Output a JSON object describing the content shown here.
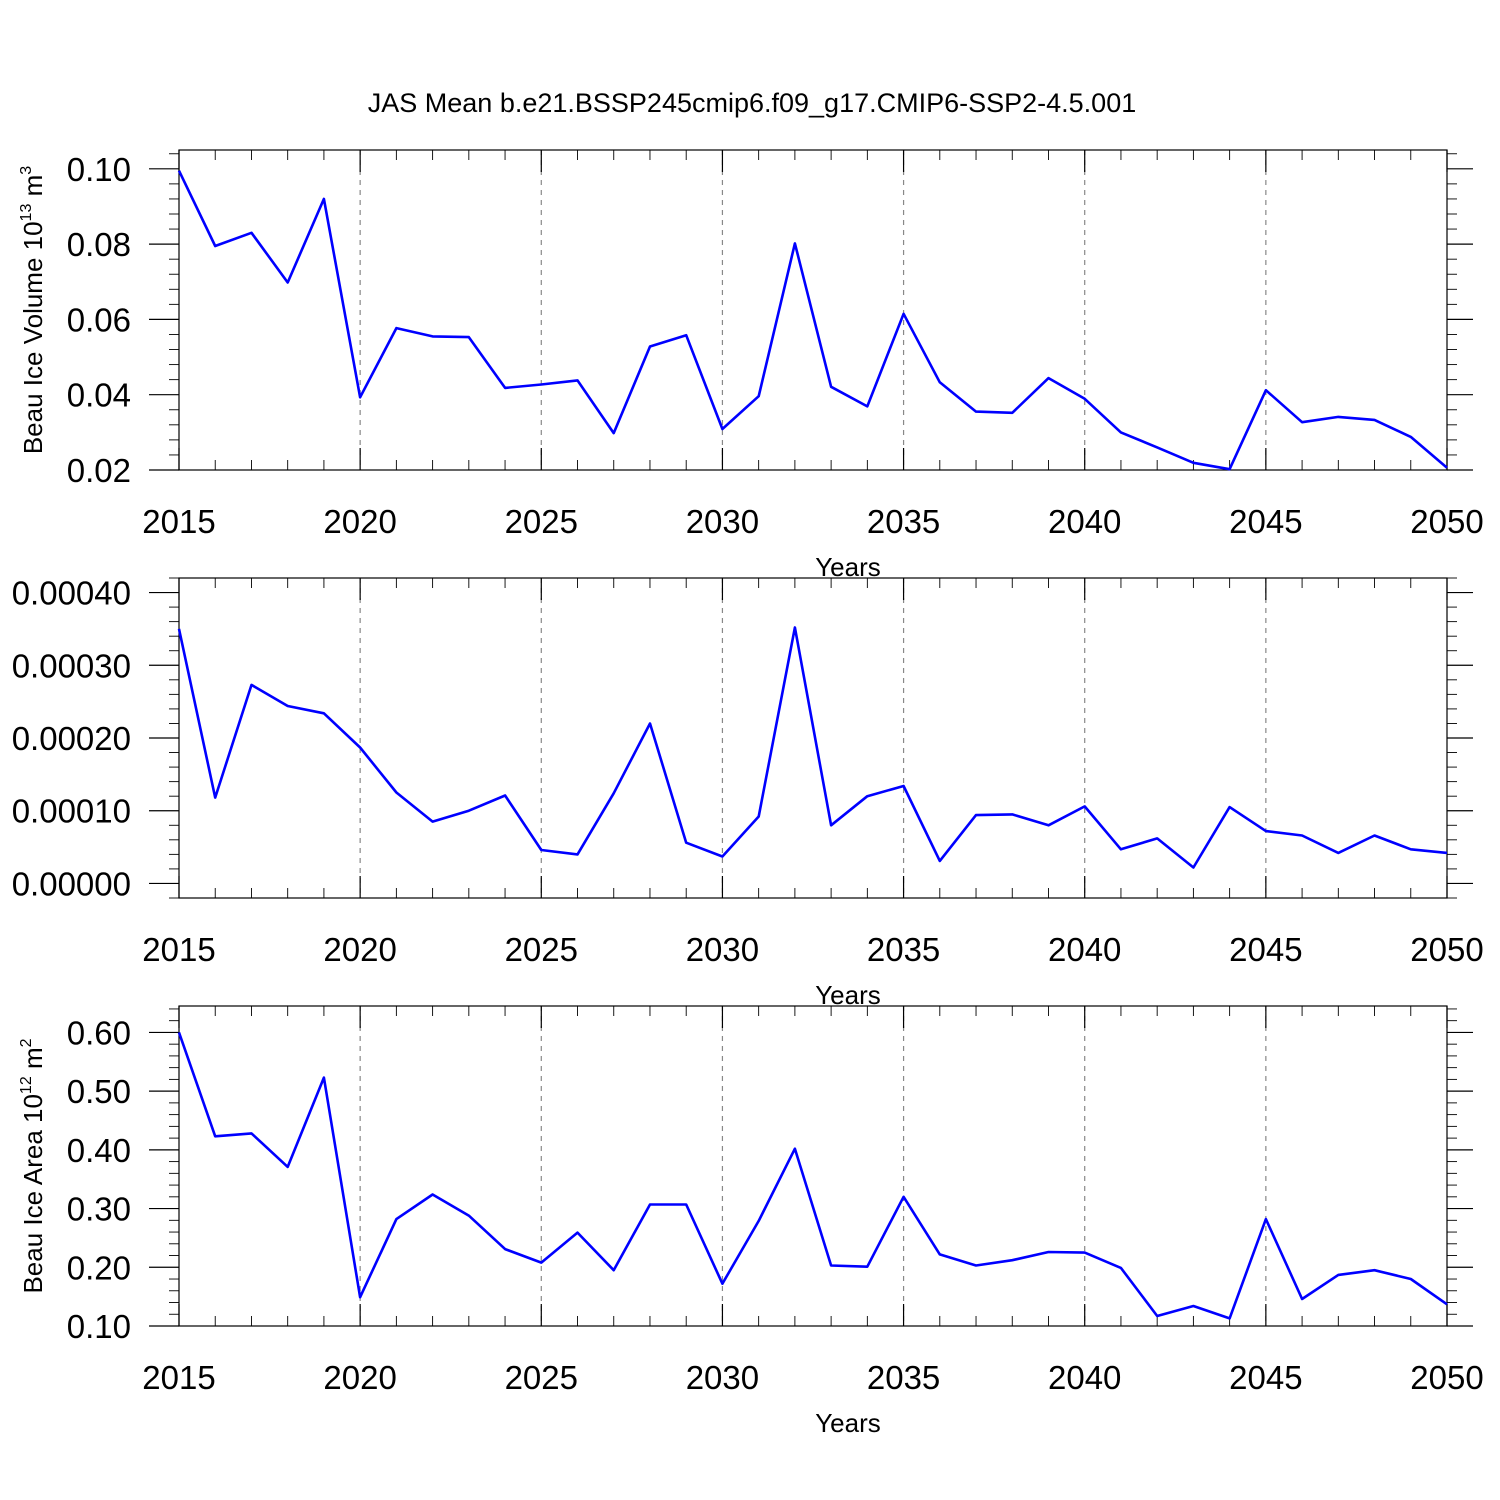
{
  "title": "JAS Mean b.e21.BSSP245cmip6.f09_g17.CMIP6-SSP2-4.5.001",
  "chart_data": [
    {
      "type": "line",
      "xlabel": "Years",
      "ylabel": "Beau Ice Volume 10",
      "ylabel_exp": "13",
      "ylabel_unit": " m",
      "ylabel_unit_exp": "3",
      "xlim": [
        2015,
        2050
      ],
      "ylim": [
        0.02,
        0.105
      ],
      "xticks": [
        2015,
        2020,
        2025,
        2030,
        2035,
        2040,
        2045,
        2050
      ],
      "xtick_labels": [
        "2015",
        "2020",
        "2025",
        "2030",
        "2035",
        "2040",
        "2045",
        "2050"
      ],
      "yticks": [
        0.02,
        0.04,
        0.06,
        0.08,
        0.1
      ],
      "ytick_labels": [
        "0.02",
        "0.04",
        "0.06",
        "0.08",
        "0.10"
      ],
      "grid": "vertical-dashed",
      "series_color": "#0000ff",
      "x": [
        2015,
        2016,
        2017,
        2018,
        2019,
        2020,
        2021,
        2022,
        2023,
        2024,
        2025,
        2026,
        2027,
        2028,
        2029,
        2030,
        2031,
        2032,
        2033,
        2034,
        2035,
        2036,
        2037,
        2038,
        2039,
        2040,
        2041,
        2042,
        2043,
        2044,
        2045,
        2046,
        2047,
        2048,
        2049,
        2050
      ],
      "y": [
        0.0995,
        0.0795,
        0.083,
        0.0698,
        0.092,
        0.0393,
        0.0577,
        0.0555,
        0.0553,
        0.0418,
        0.0427,
        0.0438,
        0.0298,
        0.0528,
        0.0558,
        0.0309,
        0.0396,
        0.0802,
        0.0421,
        0.0369,
        0.0615,
        0.0433,
        0.0355,
        0.0352,
        0.0444,
        0.0389,
        0.03,
        0.026,
        0.0219,
        0.0202,
        0.0412,
        0.0327,
        0.0341,
        0.0333,
        0.0288,
        0.0206
      ]
    },
    {
      "type": "line",
      "xlabel": "Years",
      "ylabel": "",
      "xlim": [
        2015,
        2050
      ],
      "ylim": [
        -2e-05,
        0.00042
      ],
      "xticks": [
        2015,
        2020,
        2025,
        2030,
        2035,
        2040,
        2045,
        2050
      ],
      "xtick_labels": [
        "2015",
        "2020",
        "2025",
        "2030",
        "2035",
        "2040",
        "2045",
        "2050"
      ],
      "yticks": [
        0.0,
        0.0001,
        0.0002,
        0.0003,
        0.0004
      ],
      "ytick_labels": [
        "0.00000",
        "0.00010",
        "0.00020",
        "0.00030",
        "0.00040"
      ],
      "grid": "vertical-dashed",
      "series_color": "#0000ff",
      "x": [
        2015,
        2016,
        2017,
        2018,
        2019,
        2020,
        2021,
        2022,
        2023,
        2024,
        2025,
        2026,
        2027,
        2028,
        2029,
        2030,
        2031,
        2032,
        2033,
        2034,
        2035,
        2036,
        2037,
        2038,
        2039,
        2040,
        2041,
        2042,
        2043,
        2044,
        2045,
        2046,
        2047,
        2048,
        2049,
        2050
      ],
      "y": [
        0.00035,
        0.000118,
        0.000273,
        0.000244,
        0.000234,
        0.000187,
        0.000125,
        8.5e-05,
        0.0001,
        0.000121,
        4.6e-05,
        4e-05,
        0.000124,
        0.00022,
        5.6e-05,
        3.7e-05,
        9.2e-05,
        0.000352,
        8e-05,
        0.00012,
        0.000134,
        3.1e-05,
        9.4e-05,
        9.5e-05,
        8e-05,
        0.000106,
        4.7e-05,
        6.2e-05,
        2.2e-05,
        0.000105,
        7.2e-05,
        6.6e-05,
        4.2e-05,
        6.6e-05,
        4.7e-05,
        4.2e-05
      ]
    },
    {
      "type": "line",
      "xlabel": "Years",
      "ylabel": "Beau Ice Area 10",
      "ylabel_exp": "12",
      "ylabel_unit": " m",
      "ylabel_unit_exp": "2",
      "xlim": [
        2015,
        2050
      ],
      "ylim": [
        0.1,
        0.645
      ],
      "xticks": [
        2015,
        2020,
        2025,
        2030,
        2035,
        2040,
        2045,
        2050
      ],
      "xtick_labels": [
        "2015",
        "2020",
        "2025",
        "2030",
        "2035",
        "2040",
        "2045",
        "2050"
      ],
      "yticks": [
        0.1,
        0.2,
        0.3,
        0.4,
        0.5,
        0.6
      ],
      "ytick_labels": [
        "0.10",
        "0.20",
        "0.30",
        "0.40",
        "0.50",
        "0.60"
      ],
      "grid": "vertical-dashed",
      "series_color": "#0000ff",
      "x": [
        2015,
        2016,
        2017,
        2018,
        2019,
        2020,
        2021,
        2022,
        2023,
        2024,
        2025,
        2026,
        2027,
        2028,
        2029,
        2030,
        2031,
        2032,
        2033,
        2034,
        2035,
        2036,
        2037,
        2038,
        2039,
        2040,
        2041,
        2042,
        2043,
        2044,
        2045,
        2046,
        2047,
        2048,
        2049,
        2050
      ],
      "y": [
        0.6,
        0.423,
        0.428,
        0.371,
        0.523,
        0.149,
        0.282,
        0.324,
        0.288,
        0.231,
        0.208,
        0.259,
        0.195,
        0.307,
        0.307,
        0.172,
        0.279,
        0.402,
        0.203,
        0.201,
        0.32,
        0.222,
        0.203,
        0.212,
        0.226,
        0.225,
        0.199,
        0.117,
        0.134,
        0.113,
        0.282,
        0.146,
        0.187,
        0.195,
        0.18,
        0.137
      ]
    }
  ]
}
